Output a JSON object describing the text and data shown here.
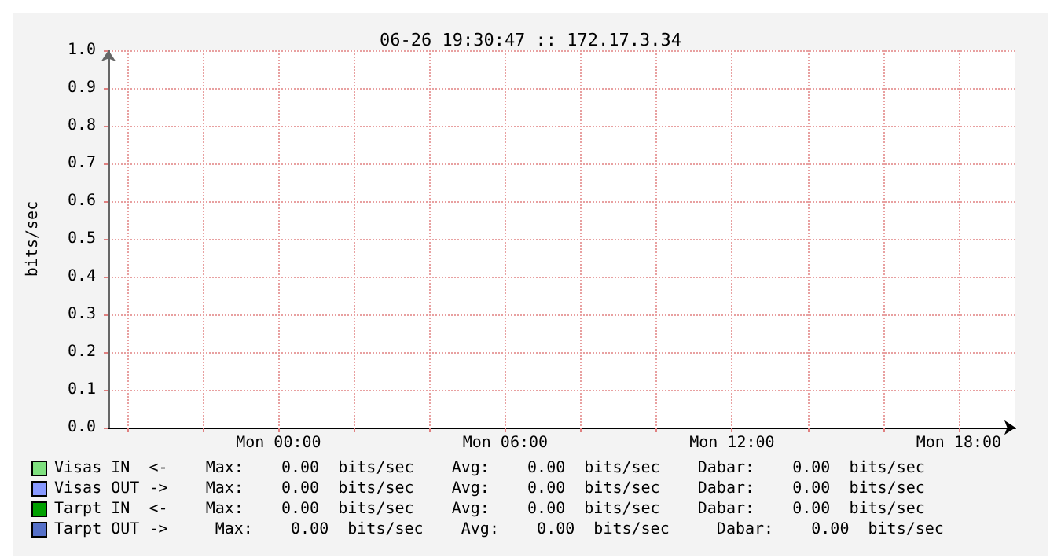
{
  "chart_data": {
    "type": "line",
    "title": "06-26 19:30:47 :: 172.17.3.34",
    "ylabel": "bits/sec",
    "categories": [
      null,
      null,
      null,
      null,
      null,
      null,
      null,
      null,
      null,
      "Mon 00:00",
      null,
      null,
      null,
      null,
      null,
      null,
      null,
      null,
      null,
      null,
      null,
      "Mon 06:00",
      null,
      null,
      null,
      null,
      null,
      null,
      null,
      null,
      null,
      null,
      null,
      "Mon 12:00",
      null,
      null,
      null,
      null,
      null,
      null,
      null,
      null,
      null,
      null,
      null,
      "Mon 18:00",
      null,
      null,
      null
    ],
    "series": [
      {
        "name": "Visas IN  <-    Max:    0.00  bits/sec    Avg:    0.00  bits/sec    Dabar:    0.00  bits/sec",
        "color": "#7fe07f",
        "values": [
          null,
          null,
          null,
          null,
          null,
          null,
          null,
          null,
          null,
          null,
          null,
          null,
          null,
          null,
          null,
          null,
          null,
          null,
          null,
          null,
          null,
          null,
          null,
          null,
          null,
          null,
          null,
          null,
          null,
          null,
          null,
          null,
          null,
          null,
          null,
          null,
          null,
          null,
          null,
          null,
          null,
          null,
          null,
          null,
          null,
          null,
          null,
          null,
          null
        ]
      },
      {
        "name": "Visas OUT ->    Max:    0.00  bits/sec    Avg:    0.00  bits/sec    Dabar:    0.00  bits/sec",
        "color": "#8899ff",
        "values": [
          null,
          null,
          null,
          null,
          null,
          null,
          null,
          null,
          null,
          null,
          null,
          null,
          null,
          null,
          null,
          null,
          null,
          null,
          null,
          null,
          null,
          null,
          null,
          null,
          null,
          null,
          null,
          null,
          null,
          null,
          null,
          null,
          null,
          null,
          null,
          null,
          null,
          null,
          null,
          null,
          null,
          null,
          null,
          null,
          null,
          null,
          null,
          null,
          null
        ]
      },
      {
        "name": "Tarpt IN  <-    Max:    0.00  bits/sec    Avg:    0.00  bits/sec    Dabar:    0.00  bits/sec",
        "color": "#00a000",
        "values": [
          null,
          null,
          null,
          null,
          null,
          null,
          null,
          null,
          null,
          null,
          null,
          null,
          null,
          null,
          null,
          null,
          null,
          null,
          null,
          null,
          null,
          null,
          null,
          null,
          null,
          null,
          null,
          null,
          null,
          null,
          null,
          null,
          null,
          null,
          null,
          null,
          null,
          null,
          null,
          null,
          null,
          null,
          null,
          null,
          null,
          null,
          null,
          null,
          null
        ]
      },
      {
        "name": "Tarpt OUT ->     Max:    0.00  bits/sec    Avg:    0.00  bits/sec     Dabar:    0.00  bits/sec",
        "color": "#5570c8",
        "values": [
          null,
          null,
          null,
          null,
          null,
          null,
          null,
          null,
          null,
          null,
          null,
          null,
          null,
          null,
          null,
          null,
          null,
          null,
          null,
          null,
          null,
          null,
          null,
          null,
          null,
          null,
          null,
          null,
          null,
          null,
          null,
          null,
          null,
          null,
          null,
          null,
          null,
          null,
          null,
          null,
          null,
          null,
          null,
          null,
          null,
          null,
          null,
          null,
          null
        ]
      }
    ],
    "ylim": [
      0,
      1
    ],
    "yticks": [
      {
        "value": 0,
        "label": "0.0"
      },
      {
        "value": 0.1,
        "label": "0.1"
      },
      {
        "value": 0.2,
        "label": "0.2"
      },
      {
        "value": 0.3,
        "label": "0.3"
      },
      {
        "value": 0.4,
        "label": "0.4"
      },
      {
        "value": 0.5,
        "label": "0.5"
      },
      {
        "value": 0.6,
        "label": "0.6"
      },
      {
        "value": 0.7,
        "label": "0.7"
      },
      {
        "value": 0.8,
        "label": "0.8"
      },
      {
        "value": 0.9,
        "label": "0.9"
      },
      {
        "value": 1,
        "label": "1.0"
      }
    ],
    "grid": true,
    "legend": "bottom"
  }
}
